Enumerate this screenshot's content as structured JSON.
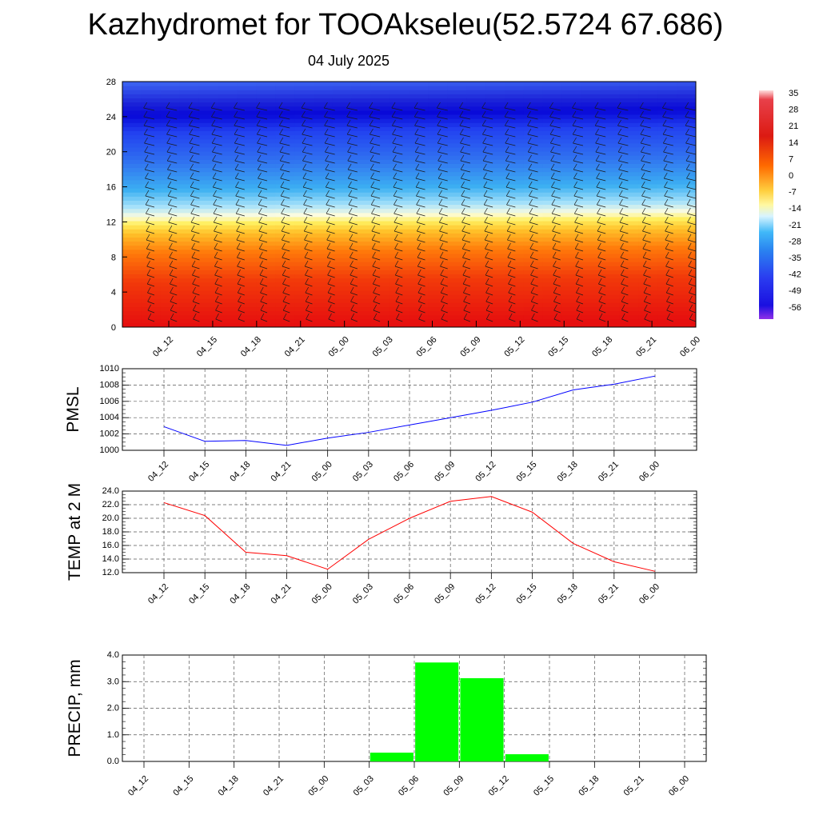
{
  "title": "Kazhydromet for TOOAkseleu(52.5724 67.686)",
  "subtitle": "04 July 2025",
  "colors": {
    "pmsl_line": "#0000ff",
    "temp_line": "#ff0000",
    "precip_bar": "#00ff00"
  },
  "chart_data": [
    {
      "type": "heatmap",
      "title": "",
      "x_ticks": [
        "04_12",
        "04_15",
        "04_18",
        "04_21",
        "05_00",
        "05_03",
        "05_06",
        "05_09",
        "05_12",
        "05_15",
        "05_18",
        "05_21",
        "06_00"
      ],
      "y_ticks": [
        "0",
        "4",
        "8",
        "12",
        "16",
        "20",
        "24",
        "28"
      ],
      "ylim": [
        0,
        28
      ],
      "colorbar_labels": [
        "35",
        "28",
        "21",
        "14",
        "7",
        "0",
        "-7",
        "-14",
        "-21",
        "-28",
        "-35",
        "-42",
        "-49",
        "-56"
      ],
      "colorbar_range": [
        -60,
        38
      ],
      "overlay": "wind barbs"
    },
    {
      "type": "line",
      "ylabel": "PMSL",
      "categories": [
        "04_12",
        "04_15",
        "04_18",
        "04_21",
        "05_00",
        "05_03",
        "05_06",
        "05_09",
        "05_12",
        "05_15",
        "05_18",
        "05_21",
        "06_00"
      ],
      "values": [
        1002.9,
        1001.1,
        1001.2,
        1000.6,
        1001.5,
        1002.2,
        1003.1,
        1004.0,
        1004.9,
        1005.9,
        1007.4,
        1008.1,
        1009.1
      ],
      "ylim": [
        1000,
        1010
      ],
      "y_ticks": [
        "1000",
        "1002",
        "1004",
        "1006",
        "1008",
        "1010"
      ],
      "grid": true
    },
    {
      "type": "line",
      "ylabel": "TEMP at 2 M",
      "categories": [
        "04_12",
        "04_15",
        "04_18",
        "04_21",
        "05_00",
        "05_03",
        "05_06",
        "05_09",
        "05_12",
        "05_15",
        "05_18",
        "05_21",
        "06_00"
      ],
      "values": [
        22.3,
        20.4,
        15.0,
        14.5,
        12.5,
        16.9,
        20.0,
        22.5,
        23.2,
        20.9,
        16.3,
        13.6,
        12.2
      ],
      "ylim": [
        12,
        24
      ],
      "y_ticks": [
        "12.0",
        "14.0",
        "16.0",
        "18.0",
        "20.0",
        "22.0",
        "24.0"
      ],
      "grid": true
    },
    {
      "type": "bar",
      "ylabel": "PRECIP, mm",
      "categories": [
        "04_12",
        "04_15",
        "04_18",
        "04_21",
        "05_00",
        "05_03",
        "05_06",
        "05_09",
        "05_12",
        "05_15",
        "05_18",
        "05_21",
        "06_00"
      ],
      "values": [
        0,
        0,
        0,
        0,
        0,
        0,
        0.33,
        3.72,
        3.13,
        0.27,
        0,
        0,
        0
      ],
      "ylim": [
        0,
        4
      ],
      "y_ticks": [
        "0.0",
        "1.0",
        "2.0",
        "3.0",
        "4.0"
      ],
      "grid": true
    }
  ]
}
